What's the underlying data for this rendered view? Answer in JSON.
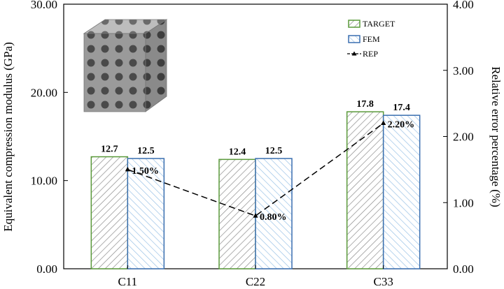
{
  "chart_data": {
    "type": "bar",
    "categories": [
      "C11",
      "C22",
      "C33"
    ],
    "series": [
      {
        "name": "TARGET",
        "values": [
          12.7,
          12.4,
          17.8
        ],
        "value_labels": [
          "12.7",
          "12.4",
          "17.8"
        ],
        "color": "#5a9a3a",
        "hatch": "#8c8c8c"
      },
      {
        "name": "FEM",
        "values": [
          12.5,
          12.5,
          17.4
        ],
        "value_labels": [
          "12.5",
          "12.5",
          "17.4"
        ],
        "color": "#3a6fb0",
        "hatch": "#9ac2e6"
      }
    ],
    "line_series": {
      "name": "REP",
      "axis": "right",
      "values": [
        1.5,
        0.8,
        2.2
      ],
      "labels": [
        "1.50%",
        "0.80%",
        "2.20%"
      ],
      "style": "dashed",
      "marker": "triangle"
    },
    "ylabel": "Equivalent compression modulus (GPa)",
    "ylabel_right": "Relative error percentage (%)",
    "ylim": [
      0,
      30
    ],
    "ylim_right": [
      0,
      4
    ],
    "yticks": [
      "0.00",
      "10.00",
      "20.00",
      "30.00"
    ],
    "yticks_right": [
      "0.00",
      "1.00",
      "2.00",
      "3.00",
      "4.00"
    ],
    "legend_position": "top-right",
    "grid": false,
    "inset_image": "lattice-cube"
  }
}
